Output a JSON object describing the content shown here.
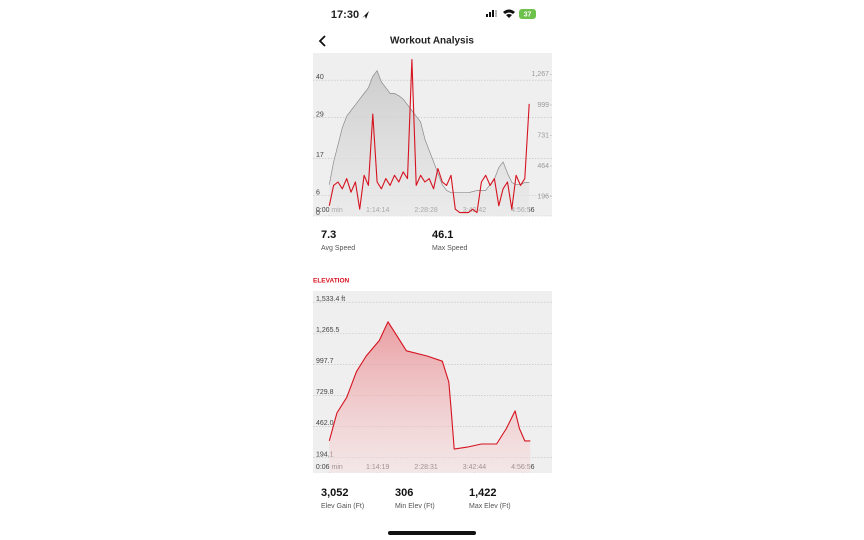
{
  "status_bar": {
    "time": "17:30",
    "battery": "37"
  },
  "header": {
    "title": "Workout Analysis"
  },
  "chart_data": [
    {
      "type": "line",
      "x": [
        0,
        400,
        800,
        1200,
        1600,
        2000,
        2400,
        2800,
        3200,
        3600,
        4000,
        4400,
        4800,
        5200,
        5600,
        6000,
        6400,
        6800,
        7200,
        7600,
        8000,
        8400,
        8800,
        9200,
        9600,
        10000,
        10400,
        10800,
        11200,
        11600,
        12000,
        12400,
        12800,
        13200,
        13600,
        14000,
        14400,
        14800,
        15200,
        15600,
        16000,
        16400,
        16800,
        17200,
        17600,
        18000,
        18400
      ],
      "xlim": [
        -1500,
        20500
      ],
      "xticks": [
        {
          "value": 0,
          "label": "0:00 min"
        },
        {
          "value": 4454,
          "label": "1:14:14"
        },
        {
          "value": 8908,
          "label": "2:28:28"
        },
        {
          "value": 13362,
          "label": "3:42:42"
        },
        {
          "value": 17816,
          "label": "4:56:56"
        }
      ],
      "ylim": [
        0,
        48
      ],
      "yticks": [
        0,
        6,
        17,
        29,
        40
      ],
      "y2lim": [
        26,
        1454
      ],
      "y2ticks": [
        196,
        464,
        731,
        999,
        {
          "value": 1267,
          "label": "1,267"
        }
      ],
      "grid": true,
      "series": [
        {
          "name": "Elevation",
          "axis": "y2",
          "color": "#8a8a8a",
          "fill": true,
          "values": [
            300,
            500,
            650,
            800,
            900,
            950,
            1000,
            1050,
            1100,
            1150,
            1250,
            1300,
            1200,
            1150,
            1100,
            1100,
            1080,
            1050,
            1000,
            950,
            900,
            850,
            700,
            600,
            500,
            400,
            300,
            250,
            230,
            230,
            230,
            230,
            230,
            240,
            250,
            250,
            250,
            300,
            350,
            450,
            500,
            400,
            320,
            300,
            300,
            320,
            320
          ]
        },
        {
          "name": "Speed",
          "axis": "y",
          "color": "#d6121f",
          "fill": false,
          "values": [
            3,
            9,
            10,
            8,
            11,
            7,
            10,
            2,
            12,
            9,
            30,
            10,
            8,
            11,
            9,
            12,
            10,
            13,
            11,
            46.1,
            9,
            12,
            10,
            11,
            8,
            14,
            10,
            9,
            12,
            2,
            1,
            1,
            1,
            2,
            1,
            10,
            12,
            9,
            11,
            3,
            8,
            10,
            2,
            12,
            9,
            11,
            33
          ]
        }
      ]
    },
    {
      "type": "area",
      "title": "ELEVATION",
      "x": [
        0,
        700,
        1600,
        2500,
        3400,
        4600,
        5400,
        6200,
        7100,
        9000,
        10400,
        11000,
        11200,
        11500,
        12700,
        14000,
        15400,
        16300,
        17100,
        17500,
        18000,
        18500
      ],
      "xlim": [
        -1500,
        20500
      ],
      "xticks": [
        {
          "value": 6,
          "label": "0:06 min"
        },
        {
          "value": 4459,
          "label": "1:14:19"
        },
        {
          "value": 8911,
          "label": "2:28:31"
        },
        {
          "value": 13364,
          "label": "3:42:44"
        },
        {
          "value": 17816,
          "label": "4:56:56"
        }
      ],
      "ylim": [
        60,
        1630
      ],
      "yticks": [
        194.1,
        {
          "value": 462.0,
          "label": "462.0"
        },
        729.8,
        997.7,
        {
          "value": 1265.5,
          "label": "1,265.5"
        },
        {
          "value": 1533.4,
          "label": "1,533.4 ft"
        }
      ],
      "grid": true,
      "series": [
        {
          "name": "Elevation",
          "axis": "y",
          "color": "#d6121f",
          "fill": true,
          "values": [
            337,
            578,
            712,
            935,
            1069,
            1203,
            1364,
            1248,
            1114,
            1069,
            1024,
            846,
            623,
            266,
            283,
            310,
            310,
            444,
            596,
            444,
            337,
            337
          ]
        }
      ]
    }
  ],
  "speed_stats": [
    {
      "value": "7.3",
      "label": "Avg Speed"
    },
    {
      "value": "46.1",
      "label": "Max Speed"
    }
  ],
  "elevation_stats": [
    {
      "value": "3,052",
      "label": "Elev Gain (Ft)"
    },
    {
      "value": "306",
      "label": "Min Elev (Ft)"
    },
    {
      "value": "1,422",
      "label": "Max Elev (Ft)"
    }
  ]
}
